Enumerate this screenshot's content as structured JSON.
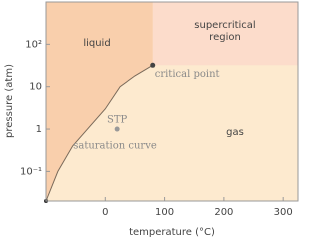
{
  "chart_data": {
    "type": "line",
    "x_label": "temperature (°C)",
    "y_label": "pressure (atm)",
    "xlim": [
      -100,
      325
    ],
    "xticks": [
      0,
      100,
      200,
      300
    ],
    "ylim": [
      0.02,
      1000
    ],
    "y_log": true,
    "yticks": [
      {
        "value": 0.1,
        "label": "10⁻¹"
      },
      1,
      10,
      {
        "value": 100,
        "label": "10²"
      }
    ],
    "curve": {
      "name": "saturation curve",
      "color": "#7a6a5a",
      "x": [
        -100,
        -80,
        -55,
        -30,
        0,
        25,
        50,
        80
      ],
      "y": [
        0.02,
        0.1,
        0.4,
        1,
        3,
        10,
        18,
        32
      ]
    },
    "points": [
      {
        "label": "critical point",
        "x": 80,
        "y": 32,
        "color": "#444444"
      },
      {
        "label": "STP",
        "x": 20,
        "y": 1,
        "color": "#999999"
      }
    ],
    "regions": [
      {
        "lines": [
          "liquid"
        ],
        "color": "#f9cfac"
      },
      {
        "lines": [
          "supercritical",
          "region"
        ],
        "color": "#fcdccb"
      },
      {
        "lines": [
          "gas"
        ],
        "color": "#fdeacf"
      }
    ]
  }
}
